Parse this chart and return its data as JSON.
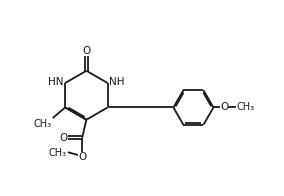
{
  "bg_color": "#ffffff",
  "line_color": "#1a1a1a",
  "line_width": 1.3,
  "font_size": 7.5,
  "bond_color": "#1a1a1a",
  "xlim": [
    0,
    10
  ],
  "ylim": [
    0,
    7
  ]
}
